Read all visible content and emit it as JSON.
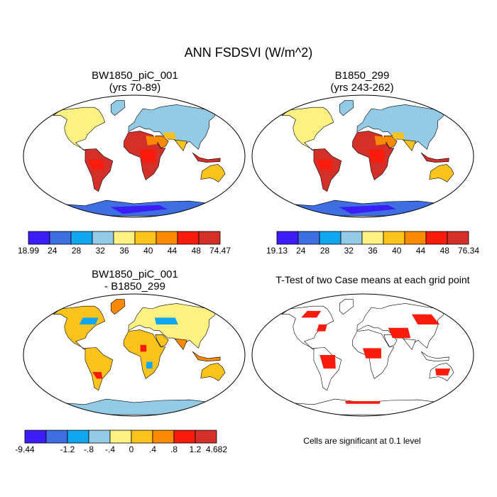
{
  "title": "ANN FSDSVI (W/m^2)",
  "panels": [
    {
      "id": "bw1850",
      "title_line1": "BW1850_piC_001",
      "title_line2": "(yrs 70-89)",
      "colorbar": {
        "colors": [
          "#3d1df5",
          "#3f6ee3",
          "#12a6ef",
          "#93cbe6",
          "#fcf181",
          "#fcc31c",
          "#fb8a02",
          "#f91c0c",
          "#d3302a"
        ],
        "labels": [
          "18.99",
          "24",
          "28",
          "32",
          "36",
          "40",
          "44",
          "48",
          "74.47"
        ]
      }
    },
    {
      "id": "b1850",
      "title_line1": "B1850_299",
      "title_line2": "(yrs 243-262)",
      "colorbar": {
        "colors": [
          "#3d1df5",
          "#3f6ee3",
          "#12a6ef",
          "#93cbe6",
          "#fcf181",
          "#fcc31c",
          "#fb8a02",
          "#f91c0c",
          "#d3302a"
        ],
        "labels": [
          "19.13",
          "24",
          "28",
          "32",
          "36",
          "40",
          "44",
          "48",
          "76.34"
        ]
      }
    },
    {
      "id": "diff",
      "title_line1": "BW1850_piC_001",
      "title_line2": "- B1850_299",
      "colorbar": {
        "colors": [
          "#3d1df5",
          "#3f6ee3",
          "#12a6ef",
          "#93cbe6",
          "#fcf181",
          "#fcc31c",
          "#fb8a02",
          "#f91c0c",
          "#d3302a"
        ],
        "labels": [
          "-9.44",
          "",
          "-1.2",
          "-.8",
          "-.4",
          "0",
          ".4",
          ".8",
          "1.2",
          "4.682"
        ]
      }
    },
    {
      "id": "ttest",
      "title_line1": "T-Test of two Case means at each grid point",
      "note": "Cells are significant at 0.1 level"
    }
  ]
}
